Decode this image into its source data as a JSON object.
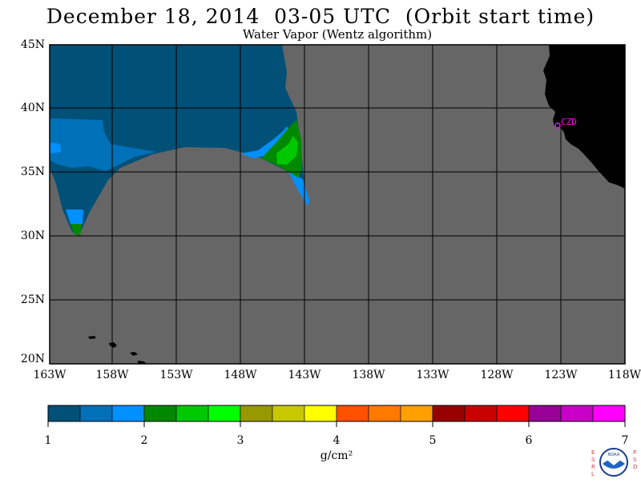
{
  "header": {
    "title": "December 18, 2014  03-05 UTC  (Orbit start time)",
    "subtitle": "Water Vapor (Wentz algorithm)"
  },
  "map": {
    "lat_labels": [
      "45N",
      "40N",
      "35N",
      "30N",
      "25N",
      "20N"
    ],
    "lon_labels": [
      "163W",
      "158W",
      "153W",
      "148W",
      "143W",
      "138W",
      "133W",
      "128W",
      "123W",
      "118W"
    ],
    "lat_range": [
      20,
      45
    ],
    "lon_range": [
      -163,
      -118
    ],
    "station_label": "CZD",
    "colors": {
      "no_data": "#666666",
      "land": "#000000",
      "grid": "#000000",
      "station": "#ff00ff"
    }
  },
  "colorbar": {
    "tick_labels": [
      "1",
      "2",
      "3",
      "4",
      "5",
      "6",
      "7"
    ],
    "unit": "g/cm²",
    "colors": [
      "#005078",
      "#0070b8",
      "#0090ff",
      "#008800",
      "#00c800",
      "#00ff00",
      "#989800",
      "#c8c800",
      "#ffff00",
      "#ff5000",
      "#ff7800",
      "#ffa000",
      "#980000",
      "#c80000",
      "#ff0000",
      "#980098",
      "#c800c8",
      "#ff00ff"
    ]
  },
  "logo": {
    "left_letters": "ESRL",
    "right_letters": "PSD",
    "badge_text": "NOAA"
  }
}
